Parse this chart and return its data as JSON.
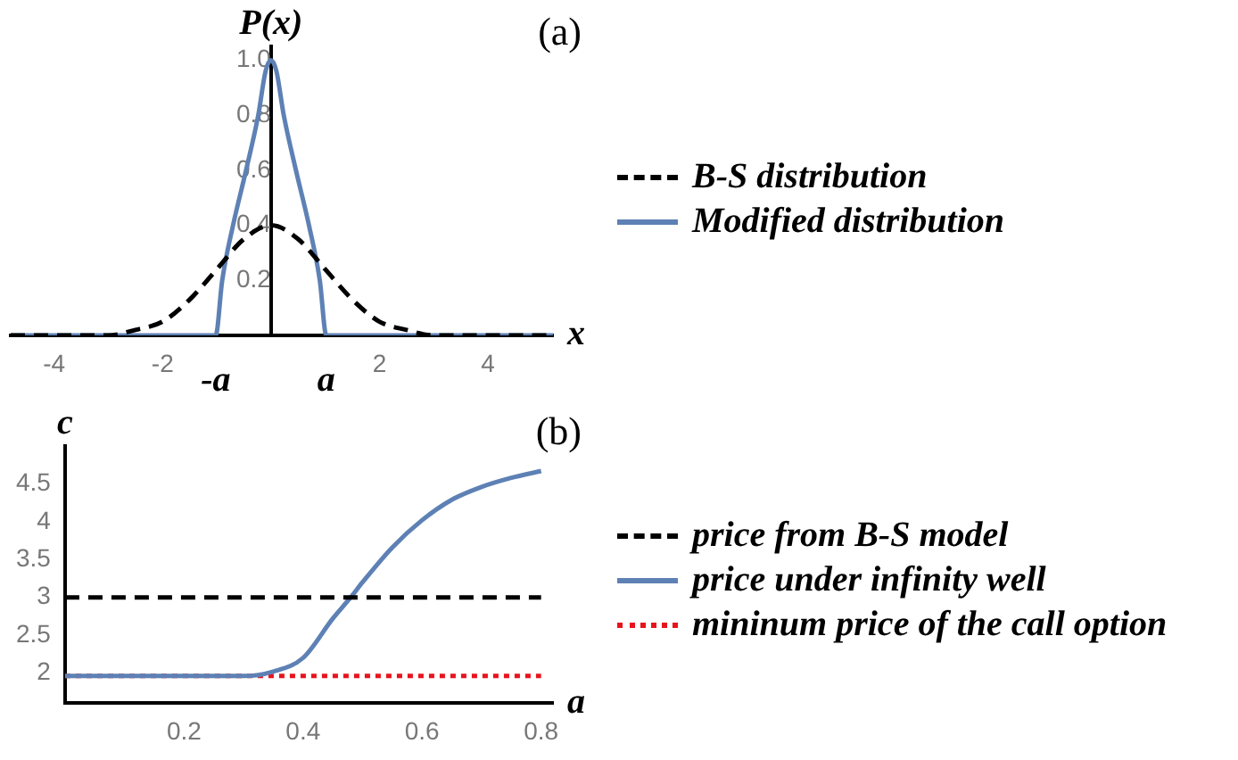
{
  "chart_data": [
    {
      "type": "line",
      "xlabel": "x",
      "ylabel": "P(x)",
      "xlim": [
        -4.8,
        5.2
      ],
      "ylim": [
        0,
        1.05
      ],
      "xticks": [
        -4,
        -2,
        2,
        4
      ],
      "yticks": [
        0.2,
        0.4,
        0.6,
        0.8,
        {
          "value": 1,
          "label": "1.0"
        }
      ],
      "grid": false,
      "legend": "right",
      "marker": "none",
      "annotations": [
        "(a)",
        {
          "text": "-a",
          "x": -1.02,
          "y": 0
        },
        {
          "text": "a",
          "x": 1.02,
          "y": 0
        }
      ],
      "series": [
        {
          "name": "B-S distribution",
          "color": "#000000",
          "line_style": "dashed",
          "x": [
            -4.8,
            -4,
            -3.5,
            -3,
            -2.5,
            -2,
            -1.5,
            -1,
            -0.5,
            0,
            0.5,
            1,
            1.5,
            2,
            2.5,
            3,
            3.5,
            4,
            5.2
          ],
          "values": [
            0,
            0,
            0,
            0,
            0.02,
            0.05,
            0.13,
            0.24,
            0.35,
            0.4,
            0.35,
            0.24,
            0.13,
            0.05,
            0.02,
            0,
            0,
            0,
            0
          ]
        },
        {
          "name": "Modified distribution",
          "color": "#5e81b5",
          "line_style": "solid",
          "x": [
            -4.8,
            -1.02,
            -0.9,
            -0.7,
            -0.46,
            -0.235,
            -0.1,
            0,
            0.1,
            0.235,
            0.46,
            0.7,
            0.9,
            1.02,
            5.2
          ],
          "values": [
            0,
            0,
            0.2,
            0.4,
            0.6,
            0.8,
            0.96,
            1,
            0.96,
            0.8,
            0.6,
            0.4,
            0.2,
            0,
            0
          ]
        }
      ]
    },
    {
      "type": "line",
      "xlabel": "a",
      "ylabel": "c",
      "xlim": [
        0,
        0.82
      ],
      "ylim": [
        1.6,
        5.0
      ],
      "xticks": [
        0.2,
        0.4,
        0.6,
        0.8
      ],
      "yticks": [
        2,
        2.5,
        3,
        3.5,
        4,
        4.5
      ],
      "grid": false,
      "legend": "right",
      "marker": "none",
      "annotations": [
        "(b)"
      ],
      "series": [
        {
          "name": "price from B-S model",
          "color": "#000000",
          "line_style": "dashed",
          "x": [
            0,
            0.8
          ],
          "values": [
            3,
            3
          ]
        },
        {
          "name": "price under infinity well",
          "color": "#5e81b5",
          "line_style": "solid",
          "x": [
            0,
            0.3,
            0.35,
            0.4,
            0.45,
            0.48,
            0.5,
            0.55,
            0.6,
            0.65,
            0.7,
            0.75,
            0.8
          ],
          "values": [
            1.96,
            1.96,
            2.02,
            2.2,
            2.72,
            3.0,
            3.2,
            3.66,
            4.02,
            4.29,
            4.46,
            4.58,
            4.67
          ]
        },
        {
          "name": "mininum price of the call option",
          "color": "#e8141c",
          "line_style": "dotted",
          "x": [
            0,
            0.8
          ],
          "values": [
            1.96,
            1.96
          ]
        }
      ]
    }
  ]
}
